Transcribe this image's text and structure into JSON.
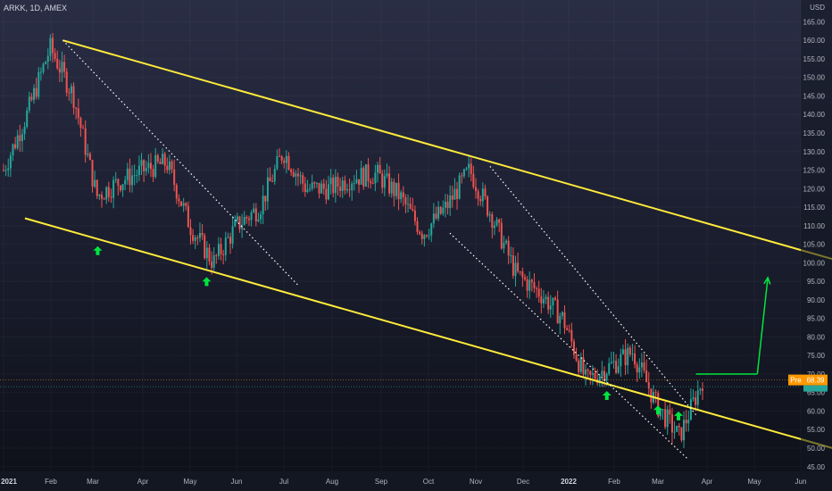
{
  "header": {
    "symbol": "ARKK, 1D, AMEX"
  },
  "price_axis": {
    "currency": "USD",
    "badge_pre_label": "Pre",
    "badge_price": "68.39"
  },
  "colors": {
    "up_candle": "#26a69a",
    "down_candle": "#ef5350",
    "channel_line": "#ffeb3b",
    "trend_dotted": "#ffffff",
    "arrow": "#00e63e",
    "target_line": "#00e63e",
    "badge_pre": "#ff9800",
    "badge_price": "#ff9800"
  },
  "chart_data": {
    "type": "candlestick",
    "title": "ARKK, 1D, AMEX",
    "ylim": [
      45,
      170
    ],
    "y_ticks": [
      45,
      50,
      55,
      60,
      65,
      70,
      75,
      80,
      85,
      90,
      95,
      100,
      105,
      110,
      115,
      120,
      125,
      130,
      135,
      140,
      145,
      150,
      155,
      160,
      165
    ],
    "x_tick_labels": [
      "2021",
      "Feb",
      "Mar",
      "Apr",
      "May",
      "Jun",
      "Jul",
      "Aug",
      "Sep",
      "Oct",
      "Nov",
      "Dec",
      "2022",
      "Feb",
      "Mar",
      "Apr",
      "May",
      "Jun"
    ],
    "x_tick_bold": [
      "2021",
      "2022"
    ],
    "close_path": [
      {
        "month": "2021-01",
        "close": 125
      },
      {
        "month": "2021-01-mid",
        "close": 140
      },
      {
        "month": "2021-02",
        "close": 158
      },
      {
        "month": "2021-02-late",
        "close": 145
      },
      {
        "month": "2021-03",
        "close": 118
      },
      {
        "month": "2021-03-mid",
        "close": 122
      },
      {
        "month": "2021-04",
        "close": 125
      },
      {
        "month": "2021-04-mid",
        "close": 127
      },
      {
        "month": "2021-05",
        "close": 110
      },
      {
        "month": "2021-05-mid",
        "close": 100
      },
      {
        "month": "2021-06",
        "close": 110
      },
      {
        "month": "2021-06-mid",
        "close": 115
      },
      {
        "month": "2021-07",
        "close": 130
      },
      {
        "month": "2021-07-mid",
        "close": 120
      },
      {
        "month": "2021-08",
        "close": 120
      },
      {
        "month": "2021-08-mid",
        "close": 123
      },
      {
        "month": "2021-09",
        "close": 124
      },
      {
        "month": "2021-09-mid",
        "close": 118
      },
      {
        "month": "2021-10",
        "close": 108
      },
      {
        "month": "2021-10-mid",
        "close": 115
      },
      {
        "month": "2021-11",
        "close": 125
      },
      {
        "month": "2021-11-mid",
        "close": 112
      },
      {
        "month": "2021-12",
        "close": 97
      },
      {
        "month": "2021-12-mid",
        "close": 92
      },
      {
        "month": "2022-01",
        "close": 85
      },
      {
        "month": "2022-01-mid",
        "close": 68
      },
      {
        "month": "2022-02",
        "close": 72
      },
      {
        "month": "2022-02-mid",
        "close": 76
      },
      {
        "month": "2022-03",
        "close": 62
      },
      {
        "month": "2022-03-mid",
        "close": 53
      },
      {
        "month": "2022-03-late",
        "close": 68.39
      }
    ],
    "annotations": {
      "upper_channel": {
        "from": {
          "date": "2021-02-09",
          "price": 160
        },
        "to": {
          "date": "2022-06-30",
          "price": 100
        }
      },
      "lower_channel": {
        "from": {
          "date": "2021-01-15",
          "price": 112
        },
        "to": {
          "date": "2022-06-30",
          "price": 49
        }
      },
      "dotted_trend_1": {
        "from": {
          "date": "2021-02-09",
          "price": 160
        },
        "to": {
          "date": "2021-07-10",
          "price": 94
        }
      },
      "dotted_trend_2": {
        "from": {
          "date": "2021-10-15",
          "price": 108
        },
        "to": {
          "date": "2022-03-20",
          "price": 47
        }
      },
      "dotted_trend_3": {
        "from": {
          "date": "2021-11-10",
          "price": 126
        },
        "to": {
          "date": "2022-03-25",
          "price": 59
        }
      },
      "target_horizontal": {
        "price": 70,
        "from": "2022-03-25",
        "to": "2022-05-03"
      },
      "target_arrow": {
        "from": {
          "date": "2022-05-03",
          "price": 70
        },
        "to": {
          "date": "2022-05-10",
          "price": 96
        }
      },
      "up_arrows_dates": [
        "2021-03-04",
        "2021-05-12",
        "2022-01-27",
        "2022-03-01",
        "2022-03-14"
      ]
    }
  }
}
